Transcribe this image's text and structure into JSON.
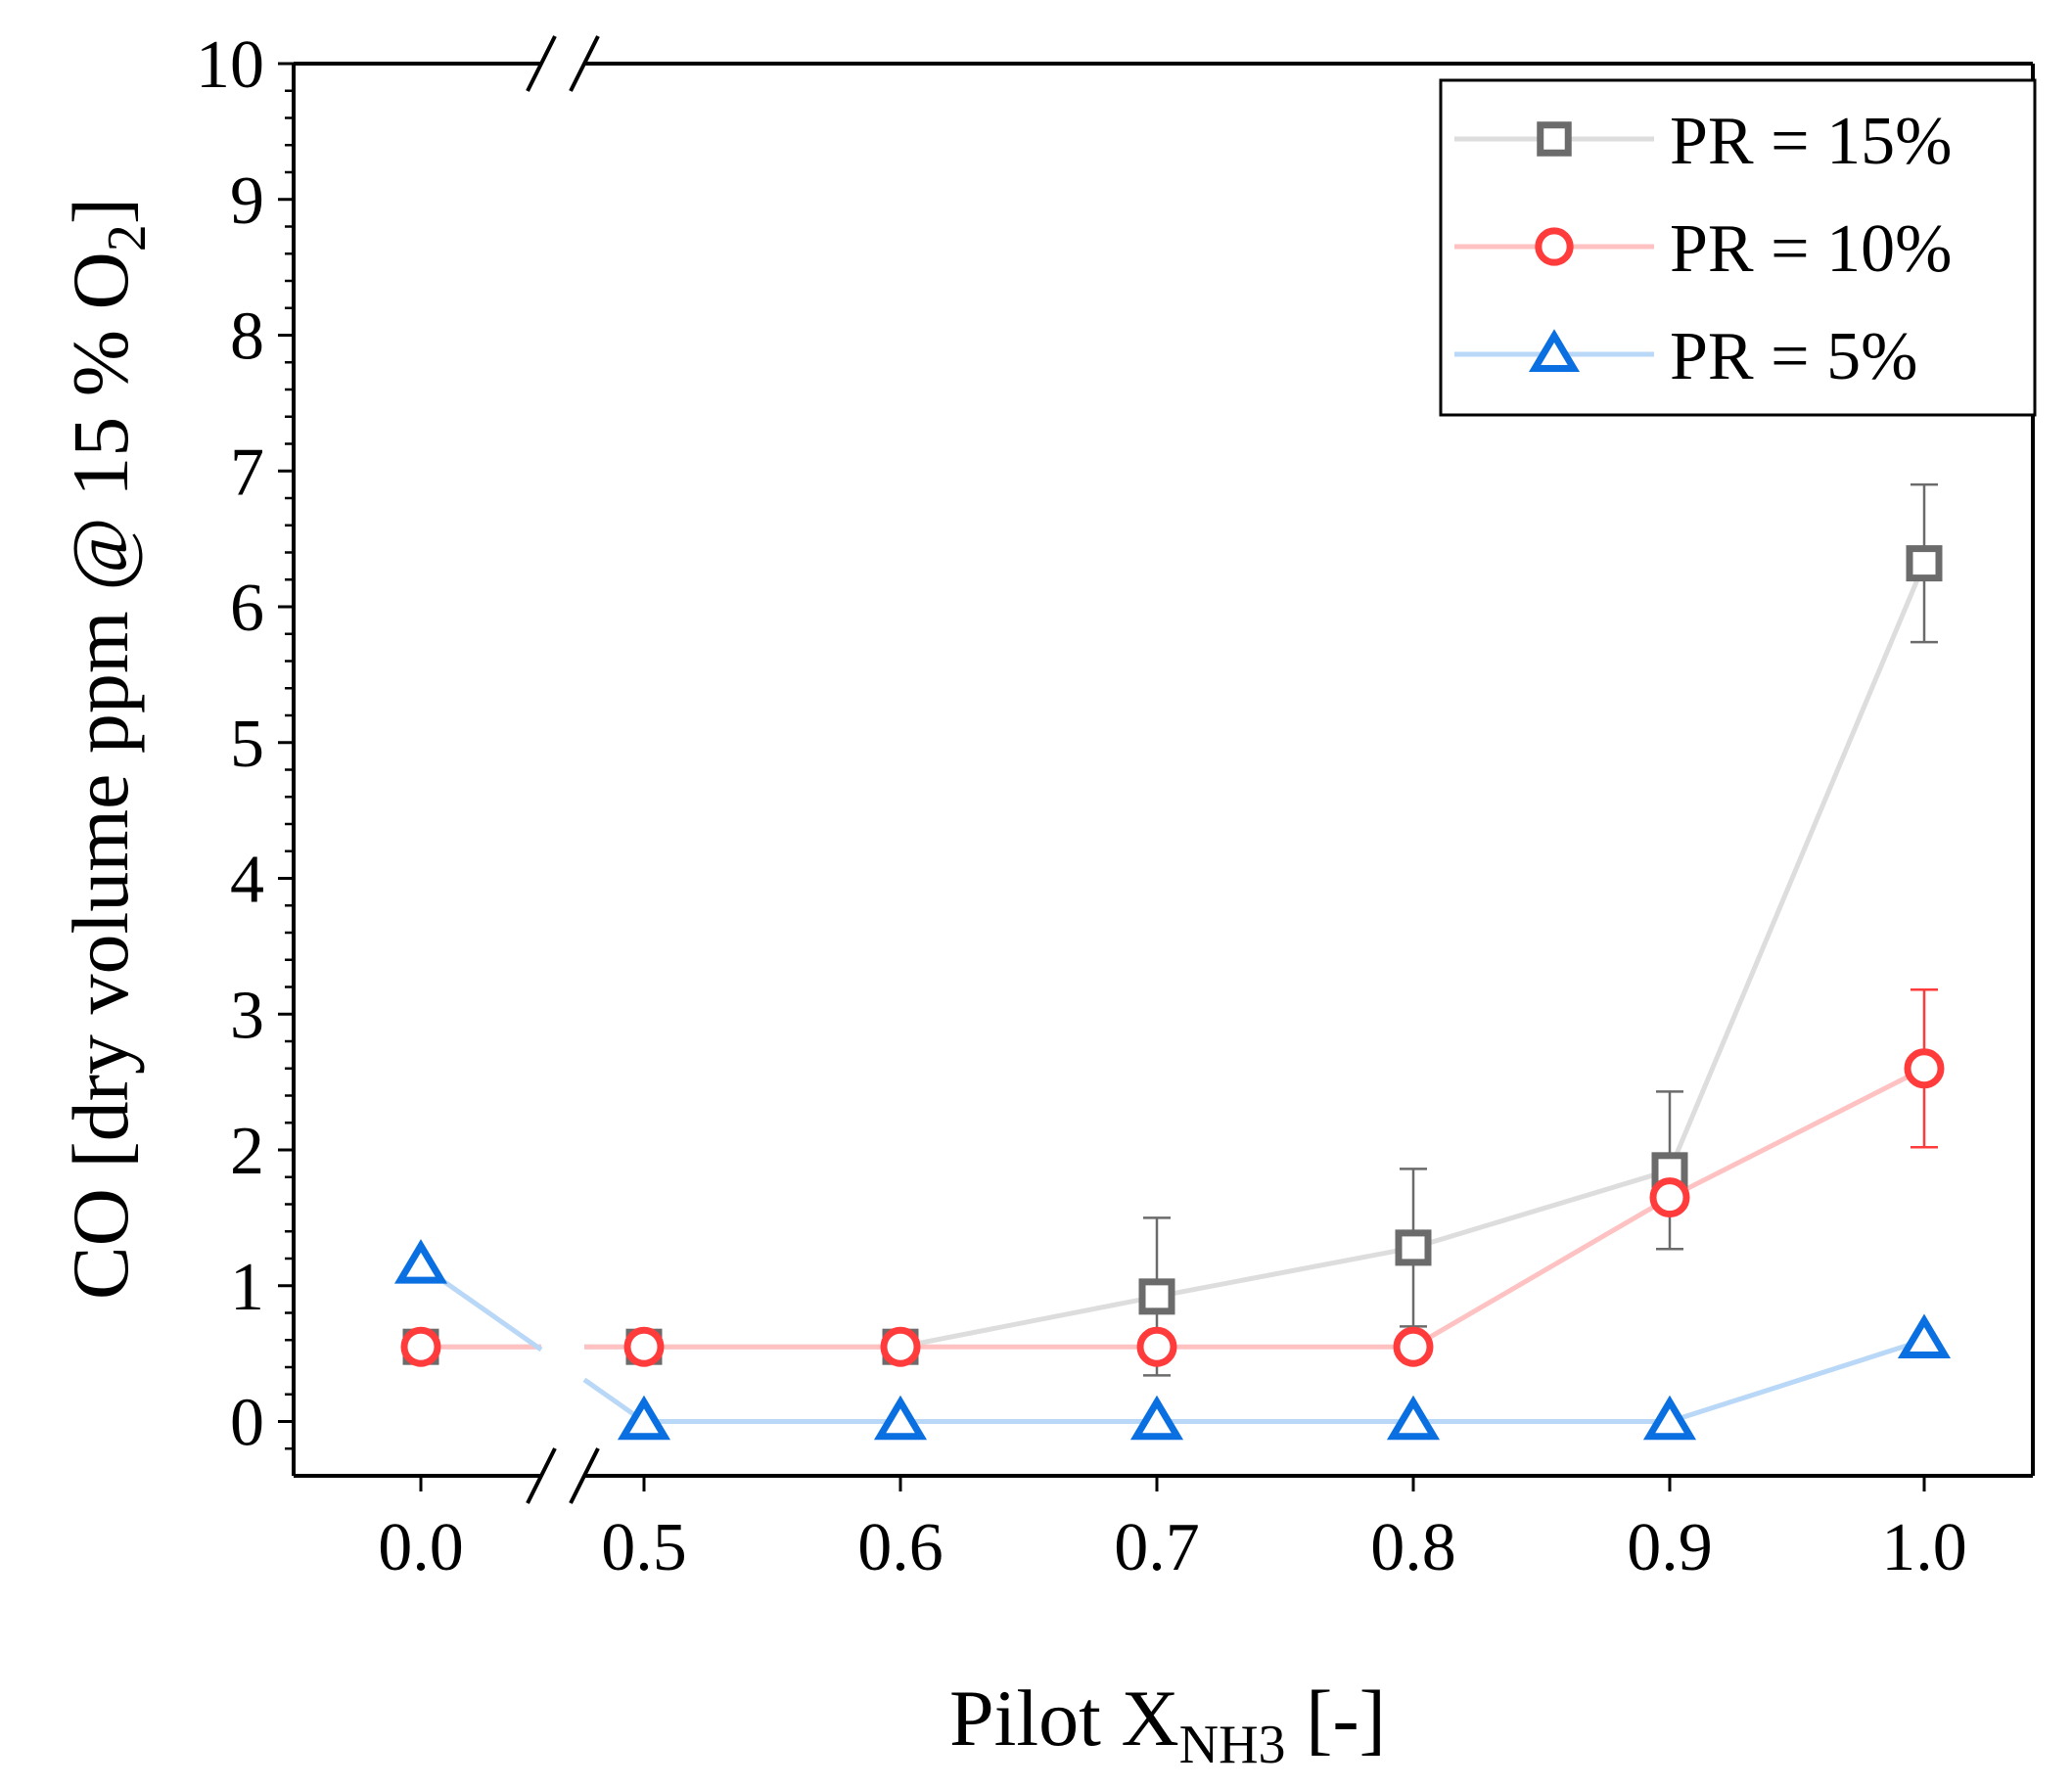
{
  "chart_data": {
    "type": "line",
    "x_categories": [
      "0.0",
      "0.5",
      "0.6",
      "0.7",
      "0.8",
      "0.9",
      "1.0"
    ],
    "x_values": [
      0.0,
      0.5,
      0.6,
      0.7,
      0.8,
      0.9,
      1.0
    ],
    "x_axis_break": "between 0.0 and 0.5",
    "ylim": [
      -0.4,
      10
    ],
    "yticks": [
      "0",
      "1",
      "2",
      "3",
      "4",
      "5",
      "6",
      "7",
      "8",
      "9",
      "10"
    ],
    "ylabel": {
      "main": "CO [dry volume ppm @ 15 % O",
      "sub": "2",
      "tail": "]"
    },
    "xlabel": {
      "main": "Pilot X",
      "sub": "NH3",
      "tail": " [-]"
    },
    "legend_position": "top-right",
    "series": [
      {
        "name": "PR = 15%",
        "marker": "square",
        "marker_color": "#6b6b6b",
        "line_color": "#dddddd",
        "error_color": "#6b6b6b",
        "values": [
          0.55,
          0.55,
          0.55,
          0.92,
          1.28,
          1.85,
          6.32
        ],
        "errors": [
          null,
          null,
          null,
          0.58,
          0.58,
          0.58,
          0.58
        ]
      },
      {
        "name": "PR = 10%",
        "marker": "circle",
        "marker_color": "#ff3b3b",
        "line_color": "#ffc2c2",
        "error_color": "#ff3b3b",
        "values": [
          0.55,
          0.55,
          0.55,
          0.55,
          0.55,
          1.65,
          2.6
        ],
        "errors": [
          null,
          null,
          null,
          null,
          null,
          null,
          0.58
        ]
      },
      {
        "name": "PR = 5%",
        "marker": "triangle",
        "marker_color": "#0a6fe0",
        "line_color": "#b9d7f7",
        "error_color": "#0a6fe0",
        "values": [
          1.15,
          0.0,
          0.0,
          0.0,
          0.0,
          0.0,
          0.6
        ],
        "errors": [
          null,
          null,
          null,
          null,
          null,
          null,
          null
        ]
      }
    ]
  }
}
